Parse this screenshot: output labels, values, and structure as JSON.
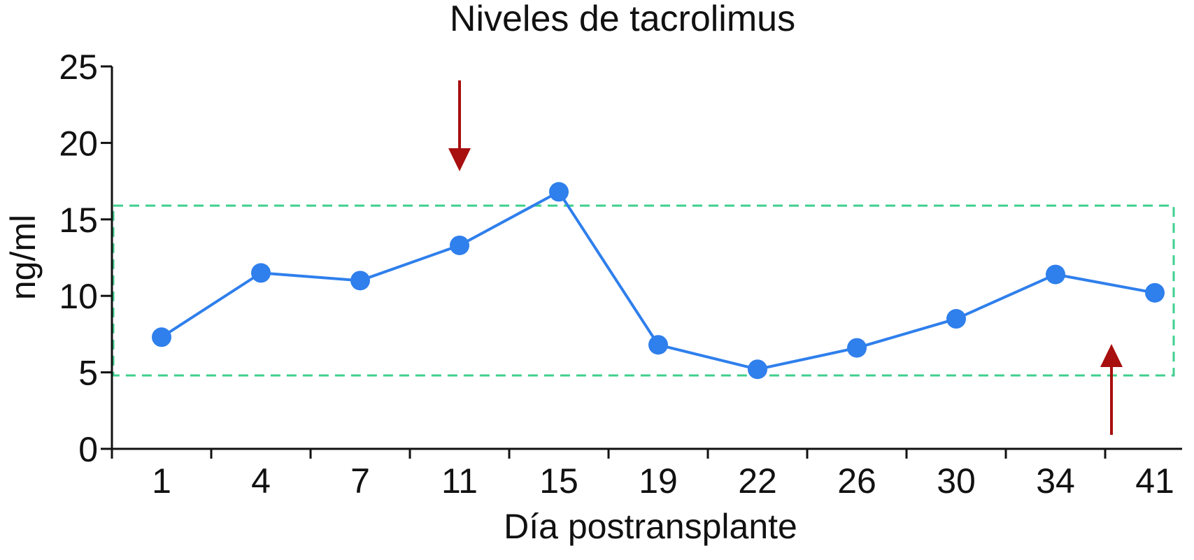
{
  "chart_data": {
    "type": "line",
    "title": "Niveles de tacrolimus",
    "xlabel": "Día postransplante",
    "ylabel": "ng/ml",
    "categories": [
      "1",
      "4",
      "7",
      "11",
      "15",
      "19",
      "22",
      "26",
      "30",
      "34",
      "41"
    ],
    "series": [
      {
        "values": [
          7.3,
          11.5,
          11.0,
          13.3,
          16.8,
          6.8,
          5.2,
          6.6,
          8.5,
          11.4,
          10.2
        ],
        "color": "#2f7fec"
      }
    ],
    "ylim": [
      0,
      25
    ],
    "yticks": [
      "0",
      "5",
      "10",
      "15",
      "20",
      "25"
    ],
    "target_range": {
      "low": 4.8,
      "high": 15.9,
      "color": "#3fcf8e",
      "style": "dashed"
    },
    "annotations": [
      {
        "type": "arrow",
        "direction": "down",
        "at_category_index": 3,
        "color": "#a80f0f"
      },
      {
        "type": "arrow",
        "direction": "up",
        "at_category_index": 10,
        "color": "#a80f0f"
      }
    ],
    "grid": false,
    "legend": "none"
  }
}
